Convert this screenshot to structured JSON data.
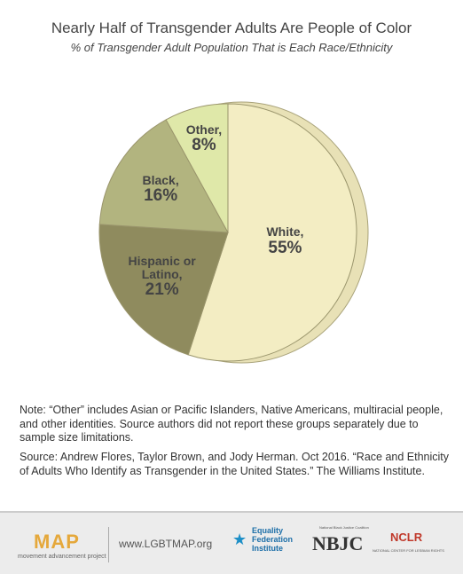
{
  "chart_data": {
    "type": "pie",
    "title": "Nearly Half of Transgender Adults Are People of Color",
    "subtitle": "% of Transgender Adult Population That is Each Race/Ethnicity",
    "categories": [
      "White,",
      "Hispanic or Latino,",
      "Black,",
      "Other,"
    ],
    "values": [
      55,
      21,
      16,
      8
    ],
    "value_labels": [
      "55%",
      "21%",
      "16%",
      "8%"
    ],
    "colors": [
      "#f3edc3",
      "#8f8b5e",
      "#b2b47f",
      "#dfe8a9"
    ]
  },
  "notes": {
    "note": "Note: “Other” includes Asian or Pacific Islanders, Native Americans, multiracial people, and other identities. Source authors did not report these groups separately due to sample size limitations.",
    "source": "Source: Andrew Flores, Taylor Brown, and Jody Herman. Oct 2016. “Race and Ethnicity of Adults Who Identify as Transgender in the United States.” The Williams Institute."
  },
  "footer": {
    "map_logo": "MAP",
    "map_tagline": "movement advancement project",
    "url": "www.LGBTMAP.org",
    "equality": "Equality Federation Institute",
    "nbjc": "NBJC",
    "nbjc_tagline": "National Black Justice Coalition",
    "nclr": "NCLR",
    "nclr_tagline": "NATIONAL CENTER FOR LESBIAN RIGHTS"
  }
}
